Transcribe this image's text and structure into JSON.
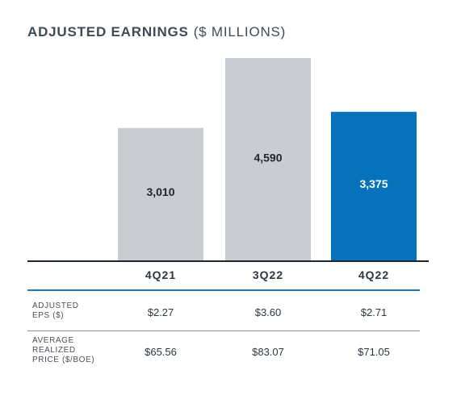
{
  "chart_data": {
    "type": "bar",
    "title": "ADJUSTED EARNINGS",
    "subtitle": "($ MILLIONS)",
    "categories": [
      "4Q21",
      "3Q22",
      "4Q22"
    ],
    "values": [
      3010,
      4590,
      3375
    ],
    "value_labels": [
      "3,010",
      "4,590",
      "3,375"
    ],
    "ylim": [
      0,
      4590
    ],
    "bar_colors": [
      "#c9cdd1",
      "#c9cdd1",
      "#0672bc"
    ],
    "value_label_colors": [
      "#1f252c",
      "#1f252c",
      "#ffffff"
    ],
    "grid": false,
    "legend": "none"
  },
  "table": {
    "rows": [
      {
        "label": "ADJUSTED\nEPS ($)",
        "values": [
          "$2.27",
          "$3.60",
          "$2.71"
        ]
      },
      {
        "label": "AVERAGE\nREALIZED\nPRICE ($/BOE)",
        "values": [
          "$65.56",
          "$83.07",
          "$71.05"
        ]
      }
    ]
  },
  "colors": {
    "accent_blue": "#0672bc",
    "bar_grey": "#c9cdd1",
    "rule_blue": "#1b79bf"
  }
}
